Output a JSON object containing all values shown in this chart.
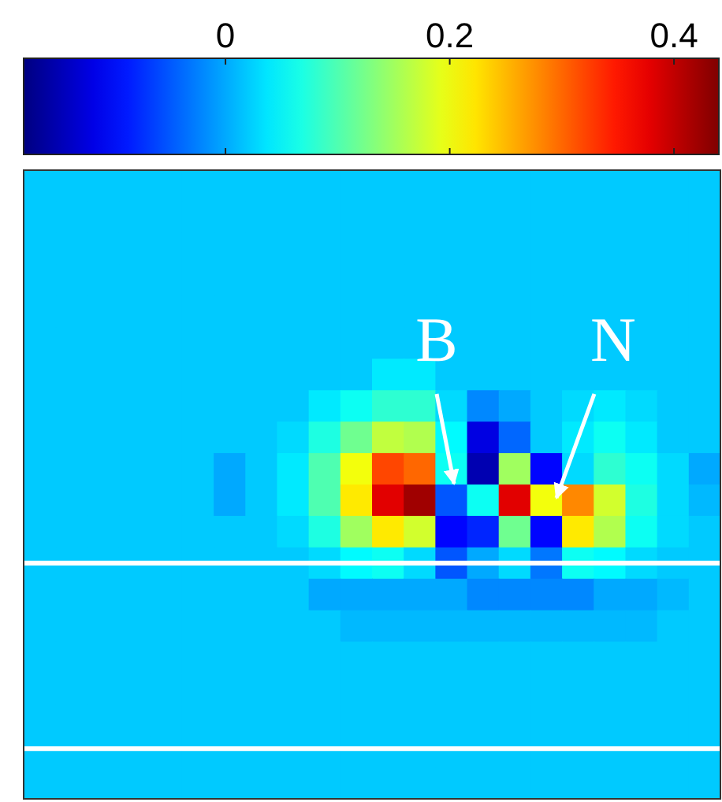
{
  "chart_data": {
    "type": "heatmap",
    "categories": [
      null,
      null,
      null,
      null,
      null,
      null,
      null,
      null,
      null,
      null,
      null,
      null,
      null,
      null,
      null,
      null,
      null,
      null,
      null,
      null,
      null,
      null
    ],
    "y_categories": [
      null,
      null,
      null,
      null,
      null,
      null,
      null,
      null,
      null,
      null,
      null,
      null,
      null,
      null,
      null,
      null,
      null,
      null,
      null,
      null
    ],
    "cells": [
      [
        0.02,
        0.02,
        0.02,
        0.02,
        0.02,
        0.02,
        0.02,
        0.02,
        0.02,
        0.02,
        0.02,
        0.02,
        0.02,
        0.02,
        0.02,
        0.02,
        0.02,
        0.02,
        0.02,
        0.02,
        0.02,
        0.02
      ],
      [
        0.02,
        0.02,
        0.02,
        0.02,
        0.02,
        0.02,
        0.02,
        0.02,
        0.02,
        0.02,
        0.02,
        0.02,
        0.02,
        0.02,
        0.02,
        0.02,
        0.02,
        0.02,
        0.02,
        0.02,
        0.02,
        0.02
      ],
      [
        0.02,
        0.02,
        0.02,
        0.02,
        0.02,
        0.02,
        0.02,
        0.02,
        0.02,
        0.02,
        0.02,
        0.02,
        0.02,
        0.02,
        0.02,
        0.02,
        0.02,
        0.02,
        0.02,
        0.02,
        0.02,
        0.02
      ],
      [
        0.02,
        0.02,
        0.02,
        0.02,
        0.02,
        0.02,
        0.02,
        0.02,
        0.02,
        0.02,
        0.02,
        0.02,
        0.02,
        0.02,
        0.02,
        0.02,
        0.02,
        0.02,
        0.02,
        0.02,
        0.02,
        0.02
      ],
      [
        0.02,
        0.02,
        0.02,
        0.02,
        0.02,
        0.02,
        0.02,
        0.02,
        0.02,
        0.02,
        0.02,
        0.02,
        0.02,
        0.02,
        0.02,
        0.02,
        0.02,
        0.02,
        0.02,
        0.02,
        0.02,
        0.02
      ],
      [
        0.02,
        0.02,
        0.02,
        0.02,
        0.02,
        0.02,
        0.02,
        0.02,
        0.02,
        0.02,
        0.02,
        0.02,
        0.02,
        0.02,
        0.02,
        0.02,
        0.02,
        0.02,
        0.02,
        0.02,
        0.02,
        0.02
      ],
      [
        0.02,
        0.02,
        0.02,
        0.02,
        0.02,
        0.02,
        0.02,
        0.02,
        0.02,
        0.02,
        0.02,
        0.04,
        0.04,
        0.02,
        0.02,
        0.02,
        0.02,
        0.02,
        0.02,
        0.02,
        0.02,
        0.02
      ],
      [
        0.02,
        0.02,
        0.02,
        0.02,
        0.02,
        0.02,
        0.02,
        0.02,
        0.02,
        0.04,
        0.06,
        0.08,
        0.08,
        0.03,
        -0.02,
        0.0,
        0.02,
        0.03,
        0.04,
        0.03,
        0.02,
        0.02
      ],
      [
        0.02,
        0.02,
        0.02,
        0.02,
        0.02,
        0.02,
        0.02,
        0.02,
        0.03,
        0.07,
        0.12,
        0.17,
        0.16,
        0.05,
        -0.12,
        -0.04,
        0.02,
        0.04,
        0.06,
        0.04,
        0.02,
        0.02
      ],
      [
        0.02,
        0.02,
        0.02,
        0.02,
        0.02,
        0.02,
        0.0,
        0.02,
        0.04,
        0.1,
        0.2,
        0.32,
        0.3,
        0.06,
        -0.15,
        0.15,
        -0.1,
        0.03,
        0.08,
        0.06,
        0.03,
        0.0
      ],
      [
        0.02,
        0.02,
        0.02,
        0.02,
        0.02,
        0.02,
        0.0,
        0.02,
        0.04,
        0.1,
        0.22,
        0.38,
        0.42,
        -0.05,
        0.06,
        0.38,
        0.2,
        0.28,
        0.18,
        0.07,
        0.03,
        0.01
      ],
      [
        0.02,
        0.02,
        0.02,
        0.02,
        0.02,
        0.02,
        0.02,
        0.02,
        0.03,
        0.07,
        0.15,
        0.22,
        0.18,
        -0.1,
        -0.08,
        0.12,
        -0.1,
        0.22,
        0.16,
        0.06,
        0.03,
        0.02
      ],
      [
        0.02,
        0.02,
        0.02,
        0.02,
        0.02,
        0.02,
        0.02,
        0.02,
        0.02,
        0.03,
        0.05,
        0.06,
        0.03,
        -0.05,
        0.0,
        0.03,
        -0.03,
        0.06,
        0.05,
        0.03,
        0.02,
        0.02
      ],
      [
        0.02,
        0.02,
        0.02,
        0.02,
        0.02,
        0.02,
        0.02,
        0.02,
        0.02,
        0.0,
        0.0,
        0.0,
        0.0,
        0.0,
        -0.02,
        -0.02,
        -0.02,
        -0.02,
        0.0,
        0.0,
        0.01,
        0.02
      ],
      [
        0.02,
        0.02,
        0.02,
        0.02,
        0.02,
        0.02,
        0.02,
        0.02,
        0.02,
        0.02,
        0.01,
        0.01,
        0.01,
        0.01,
        0.01,
        0.01,
        0.01,
        0.01,
        0.01,
        0.01,
        0.02,
        0.02
      ],
      [
        0.02,
        0.02,
        0.02,
        0.02,
        0.02,
        0.02,
        0.02,
        0.02,
        0.02,
        0.02,
        0.02,
        0.02,
        0.02,
        0.02,
        0.02,
        0.02,
        0.02,
        0.02,
        0.02,
        0.02,
        0.02,
        0.02
      ],
      [
        0.02,
        0.02,
        0.02,
        0.02,
        0.02,
        0.02,
        0.02,
        0.02,
        0.02,
        0.02,
        0.02,
        0.02,
        0.02,
        0.02,
        0.02,
        0.02,
        0.02,
        0.02,
        0.02,
        0.02,
        0.02,
        0.02
      ],
      [
        0.02,
        0.02,
        0.02,
        0.02,
        0.02,
        0.02,
        0.02,
        0.02,
        0.02,
        0.02,
        0.02,
        0.02,
        0.02,
        0.02,
        0.02,
        0.02,
        0.02,
        0.02,
        0.02,
        0.02,
        0.02,
        0.02
      ],
      [
        0.02,
        0.02,
        0.02,
        0.02,
        0.02,
        0.02,
        0.02,
        0.02,
        0.02,
        0.02,
        0.02,
        0.02,
        0.02,
        0.02,
        0.02,
        0.02,
        0.02,
        0.02,
        0.02,
        0.02,
        0.02,
        0.02
      ],
      [
        0.02,
        0.02,
        0.02,
        0.02,
        0.02,
        0.02,
        0.02,
        0.02,
        0.02,
        0.02,
        0.02,
        0.02,
        0.02,
        0.02,
        0.02,
        0.02,
        0.02,
        0.02,
        0.02,
        0.02,
        0.02,
        0.02
      ]
    ],
    "clim": [
      -0.18,
      0.44
    ],
    "cticks": [
      0,
      0.2,
      0.4
    ],
    "annotations": [
      "B",
      "N"
    ]
  }
}
